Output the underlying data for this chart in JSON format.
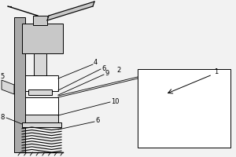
{
  "bg_color": "#f2f2f2",
  "gray_fill": "#aaaaaa",
  "mid_gray": "#c8c8c8",
  "light_gray": "#d8d8d8",
  "white_fill": "#ffffff",
  "line_color": "#000000",
  "fig_w": 3.0,
  "fig_h": 2.0,
  "dpi": 100
}
